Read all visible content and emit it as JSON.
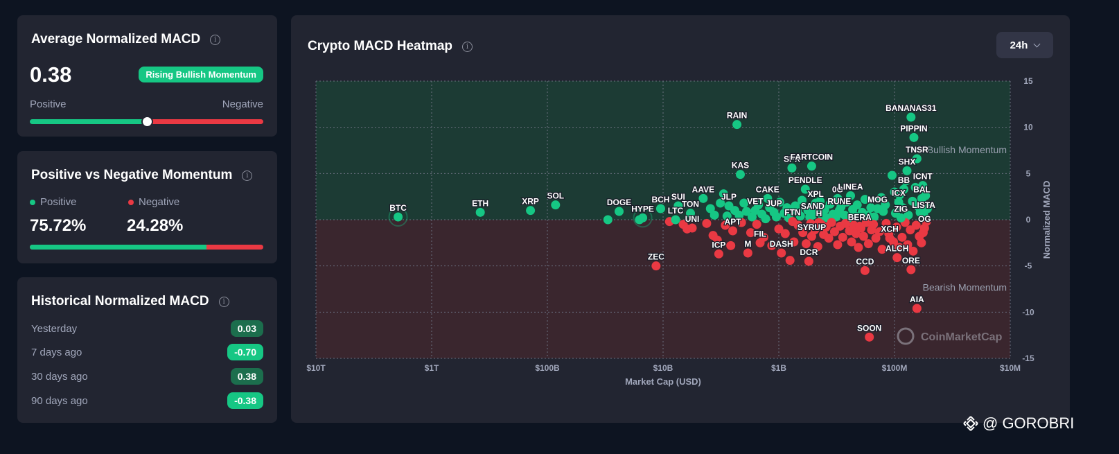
{
  "avg_card": {
    "title": "Average Normalized MACD",
    "value": "0.38",
    "badge": "Rising Bullish Momentum",
    "left_label": "Positive",
    "right_label": "Negative",
    "indicator_position": 0.5
  },
  "momentum_card": {
    "title": "Positive vs Negative Momentum",
    "positive_label": "Positive",
    "negative_label": "Negative",
    "positive_value": "75.72%",
    "negative_value": "24.28%",
    "positive_fraction": 0.7572
  },
  "history_card": {
    "title": "Historical Normalized MACD",
    "rows": [
      {
        "label": "Yesterday",
        "value": "0.03"
      },
      {
        "label": "7 days ago",
        "value": "-0.70"
      },
      {
        "label": "30 days ago",
        "value": "0.38"
      },
      {
        "label": "90 days ago",
        "value": "-0.38"
      }
    ]
  },
  "chart_card": {
    "title": "Crypto MACD Heatmap",
    "timeframe": "24h"
  },
  "watermark": {
    "chart_logo_text": "CoinMarketCap",
    "signature": "@ GOROBRI"
  },
  "colors": {
    "positive": "#16c784",
    "negative": "#ea3943",
    "card": "#222531",
    "background": "#0d1421"
  },
  "chart_data": {
    "type": "scatter",
    "xlabel": "Market Cap (USD)",
    "ylabel": "Normalized MACD",
    "x_scale": "log",
    "x_order": "descending",
    "xlim": [
      10000000000000,
      10000000
    ],
    "ylim": [
      -15,
      15
    ],
    "x_ticks": [
      {
        "value": 10000000000000,
        "label": "$10T"
      },
      {
        "value": 1000000000000,
        "label": "$1T"
      },
      {
        "value": 100000000000,
        "label": "$100B"
      },
      {
        "value": 10000000000,
        "label": "$10B"
      },
      {
        "value": 1000000000,
        "label": "$1B"
      },
      {
        "value": 100000000,
        "label": "$100M"
      },
      {
        "value": 10000000,
        "label": "$10M"
      }
    ],
    "y_ticks": [
      15,
      10,
      5,
      0,
      -5,
      -10,
      -15
    ],
    "zones": [
      {
        "label": "Bullish Momentum",
        "from": 0,
        "to": 15
      },
      {
        "label": "Bearish Momentum",
        "from": -15,
        "to": 0
      }
    ],
    "grid": true,
    "labeled_points": [
      {
        "name": "BTC",
        "x": 1950000000000,
        "y": 0.3,
        "ring": true
      },
      {
        "name": "ETH",
        "x": 380000000000,
        "y": 0.8
      },
      {
        "name": "XRP",
        "x": 140000000000,
        "y": 1.0
      },
      {
        "name": "SOL",
        "x": 85000000000,
        "y": 1.6
      },
      {
        "name": "DOGE",
        "x": 24000000000,
        "y": 0.9
      },
      {
        "name": "HYPE",
        "x": 15000000000,
        "y": 0.2,
        "ring": true
      },
      {
        "name": "BCH",
        "x": 10500000000,
        "y": 1.2
      },
      {
        "name": "SUI",
        "x": 7400000000,
        "y": 1.5
      },
      {
        "name": "LTC",
        "x": 7800000000,
        "y": 0.0
      },
      {
        "name": "TON",
        "x": 5800000000,
        "y": 0.7
      },
      {
        "name": "UNI",
        "x": 5600000000,
        "y": -0.9
      },
      {
        "name": "AAVE",
        "x": 4500000000,
        "y": 2.3
      },
      {
        "name": "ZEC",
        "x": 11500000000,
        "y": -5.0
      },
      {
        "name": "ICP",
        "x": 3300000000,
        "y": -3.7
      },
      {
        "name": "RAIN",
        "x": 2300000000,
        "y": 10.3
      },
      {
        "name": "KAS",
        "x": 2150000000,
        "y": 4.9
      },
      {
        "name": "JLP",
        "x": 2700000000,
        "y": 1.5
      },
      {
        "name": "APT",
        "x": 2500000000,
        "y": -1.2
      },
      {
        "name": "VET",
        "x": 1600000000,
        "y": 1.0
      },
      {
        "name": "FIL",
        "x": 1450000000,
        "y": -2.5
      },
      {
        "name": "M",
        "x": 1850000000,
        "y": -3.6
      },
      {
        "name": "CAKE",
        "x": 1250000000,
        "y": 2.3
      },
      {
        "name": "JUP",
        "x": 1100000000,
        "y": 0.8
      },
      {
        "name": "DASH",
        "x": 950000000,
        "y": -3.6
      },
      {
        "name": "SPX",
        "x": 770000000,
        "y": 5.6
      },
      {
        "name": "FARTCOIN",
        "x": 520000000,
        "y": 5.8
      },
      {
        "name": "FTN",
        "x": 760000000,
        "y": -0.2
      },
      {
        "name": "PENDLE",
        "x": 590000000,
        "y": 3.3
      },
      {
        "name": "XPL",
        "x": 480000000,
        "y": 1.8
      },
      {
        "name": "SAND",
        "x": 510000000,
        "y": 0.5
      },
      {
        "name": "H",
        "x": 450000000,
        "y": -0.3
      },
      {
        "name": "SYRUP",
        "x": 520000000,
        "y": -1.8
      },
      {
        "name": "DCR",
        "x": 550000000,
        "y": -4.5
      },
      {
        "name": "0G",
        "x": 310000000,
        "y": 2.3
      },
      {
        "name": "LINEA",
        "x": 240000000,
        "y": 2.6
      },
      {
        "name": "RUNE",
        "x": 300000000,
        "y": 1.0
      },
      {
        "name": "BERA",
        "x": 200000000,
        "y": -0.7
      },
      {
        "name": "CCD",
        "x": 180000000,
        "y": -5.5
      },
      {
        "name": "SOON",
        "x": 165000000,
        "y": -12.7
      },
      {
        "name": "MOG",
        "x": 140000000,
        "y": 1.2
      },
      {
        "name": "XCH",
        "x": 110000000,
        "y": -2.0
      },
      {
        "name": "ALCH",
        "x": 95000000,
        "y": -4.1
      },
      {
        "name": "ORE",
        "x": 72000000,
        "y": -5.4
      },
      {
        "name": "AIA",
        "x": 64000000,
        "y": -9.6
      },
      {
        "name": "BANANAS31",
        "x": 72000000,
        "y": 11.1
      },
      {
        "name": "PIPPIN",
        "x": 68000000,
        "y": 8.9
      },
      {
        "name": "TNSR",
        "x": 64000000,
        "y": 6.6
      },
      {
        "name": "SHX",
        "x": 78000000,
        "y": 5.3
      },
      {
        "name": "ICNT",
        "x": 57000000,
        "y": 3.7
      },
      {
        "name": "BB",
        "x": 83000000,
        "y": 3.3
      },
      {
        "name": "BAL",
        "x": 58000000,
        "y": 2.3
      },
      {
        "name": "ICX",
        "x": 92000000,
        "y": 1.9
      },
      {
        "name": "LISTA",
        "x": 56000000,
        "y": 0.6
      },
      {
        "name": "ZIG",
        "x": 88000000,
        "y": 0.2
      },
      {
        "name": "OG",
        "x": 55000000,
        "y": -0.9
      }
    ],
    "unlabeled_points": [
      [
        3200000000,
        1.8
      ],
      [
        3900000000,
        1.2
      ],
      [
        3600000000,
        0.5
      ],
      [
        3000000000,
        2.8
      ],
      [
        2800000000,
        0.4
      ],
      [
        2400000000,
        1.0
      ],
      [
        2200000000,
        0.5
      ],
      [
        2000000000,
        1.8
      ],
      [
        1900000000,
        0.9
      ],
      [
        1700000000,
        0.3
      ],
      [
        1500000000,
        1.6
      ],
      [
        1400000000,
        0.6
      ],
      [
        1300000000,
        0.1
      ],
      [
        1200000000,
        1.3
      ],
      [
        1050000000,
        0.3
      ],
      [
        980000000,
        1.9
      ],
      [
        900000000,
        0.7
      ],
      [
        850000000,
        1.3
      ],
      [
        820000000,
        0.2
      ],
      [
        720000000,
        1.5
      ],
      [
        690000000,
        0.9
      ],
      [
        650000000,
        0.4
      ],
      [
        630000000,
        2.1
      ],
      [
        560000000,
        1.0
      ],
      [
        540000000,
        0.3
      ],
      [
        500000000,
        1.4
      ],
      [
        470000000,
        0.8
      ],
      [
        440000000,
        2.0
      ],
      [
        420000000,
        0.4
      ],
      [
        400000000,
        1.1
      ],
      [
        380000000,
        0.2
      ],
      [
        360000000,
        1.7
      ],
      [
        340000000,
        0.6
      ],
      [
        320000000,
        0.3
      ],
      [
        290000000,
        1.4
      ],
      [
        270000000,
        0.5
      ],
      [
        260000000,
        1.9
      ],
      [
        250000000,
        0.2
      ],
      [
        230000000,
        1.1
      ],
      [
        220000000,
        0.4
      ],
      [
        210000000,
        1.6
      ],
      [
        190000000,
        0.8
      ],
      [
        180000000,
        2.2
      ],
      [
        170000000,
        0.5
      ],
      [
        160000000,
        1.3
      ],
      [
        150000000,
        0.3
      ],
      [
        130000000,
        2.4
      ],
      [
        125000000,
        0.9
      ],
      [
        120000000,
        1.6
      ],
      [
        105000000,
        4.8
      ],
      [
        100000000,
        3.0
      ],
      [
        98000000,
        0.7
      ],
      [
        90000000,
        2.7
      ],
      [
        85000000,
        1.3
      ],
      [
        80000000,
        4.2
      ],
      [
        76000000,
        0.5
      ],
      [
        70000000,
        2.0
      ],
      [
        66000000,
        3.5
      ],
      [
        62000000,
        1.4
      ],
      [
        60000000,
        0.8
      ],
      [
        54000000,
        2.6
      ],
      [
        52000000,
        1.2
      ],
      [
        30000000000,
        0.0
      ],
      [
        16000000000,
        0.0
      ],
      [
        8800000000,
        -0.2
      ],
      [
        6700000000,
        -0.5
      ],
      [
        6200000000,
        -1.0
      ],
      [
        4200000000,
        -0.4
      ],
      [
        3700000000,
        -1.7
      ],
      [
        3400000000,
        -2.2
      ],
      [
        2900000000,
        -0.6
      ],
      [
        2600000000,
        -2.8
      ],
      [
        2100000000,
        -0.3
      ],
      [
        1750000000,
        -1.4
      ],
      [
        1550000000,
        -0.5
      ],
      [
        1350000000,
        -1.9
      ],
      [
        1150000000,
        -2.8
      ],
      [
        1000000000,
        -1.0
      ],
      [
        880000000,
        -1.5
      ],
      [
        800000000,
        -4.4
      ],
      [
        740000000,
        -2.4
      ],
      [
        680000000,
        -0.6
      ],
      [
        620000000,
        -1.4
      ],
      [
        580000000,
        -2.6
      ],
      [
        530000000,
        -0.4
      ],
      [
        490000000,
        -1.1
      ],
      [
        460000000,
        -2.9
      ],
      [
        430000000,
        -0.5
      ],
      [
        410000000,
        -1.6
      ],
      [
        390000000,
        -0.8
      ],
      [
        370000000,
        -2.0
      ],
      [
        350000000,
        -0.3
      ],
      [
        330000000,
        -1.3
      ],
      [
        310000000,
        -2.7
      ],
      [
        295000000,
        -0.7
      ],
      [
        280000000,
        -1.9
      ],
      [
        265000000,
        -0.4
      ],
      [
        245000000,
        -1.2
      ],
      [
        235000000,
        -2.4
      ],
      [
        225000000,
        -0.6
      ],
      [
        215000000,
        -1.5
      ],
      [
        205000000,
        -3.0
      ],
      [
        195000000,
        -0.9
      ],
      [
        185000000,
        -1.8
      ],
      [
        175000000,
        -0.3
      ],
      [
        168000000,
        -2.6
      ],
      [
        158000000,
        -1.1
      ],
      [
        152000000,
        -0.5
      ],
      [
        145000000,
        -2.0
      ],
      [
        135000000,
        -1.3
      ],
      [
        128000000,
        -3.2
      ],
      [
        118000000,
        -0.4
      ],
      [
        112000000,
        -1.5
      ],
      [
        102000000,
        -2.4
      ],
      [
        96000000,
        -0.8
      ],
      [
        91000000,
        -3.0
      ],
      [
        86000000,
        -1.9
      ],
      [
        81000000,
        -0.3
      ],
      [
        77000000,
        -2.7
      ],
      [
        73000000,
        -1.1
      ],
      [
        69000000,
        -3.4
      ],
      [
        65000000,
        -0.6
      ],
      [
        61000000,
        -1.8
      ],
      [
        58500000,
        -2.5
      ],
      [
        56500000,
        -1.4
      ],
      [
        53000000,
        -0.2
      ]
    ]
  }
}
